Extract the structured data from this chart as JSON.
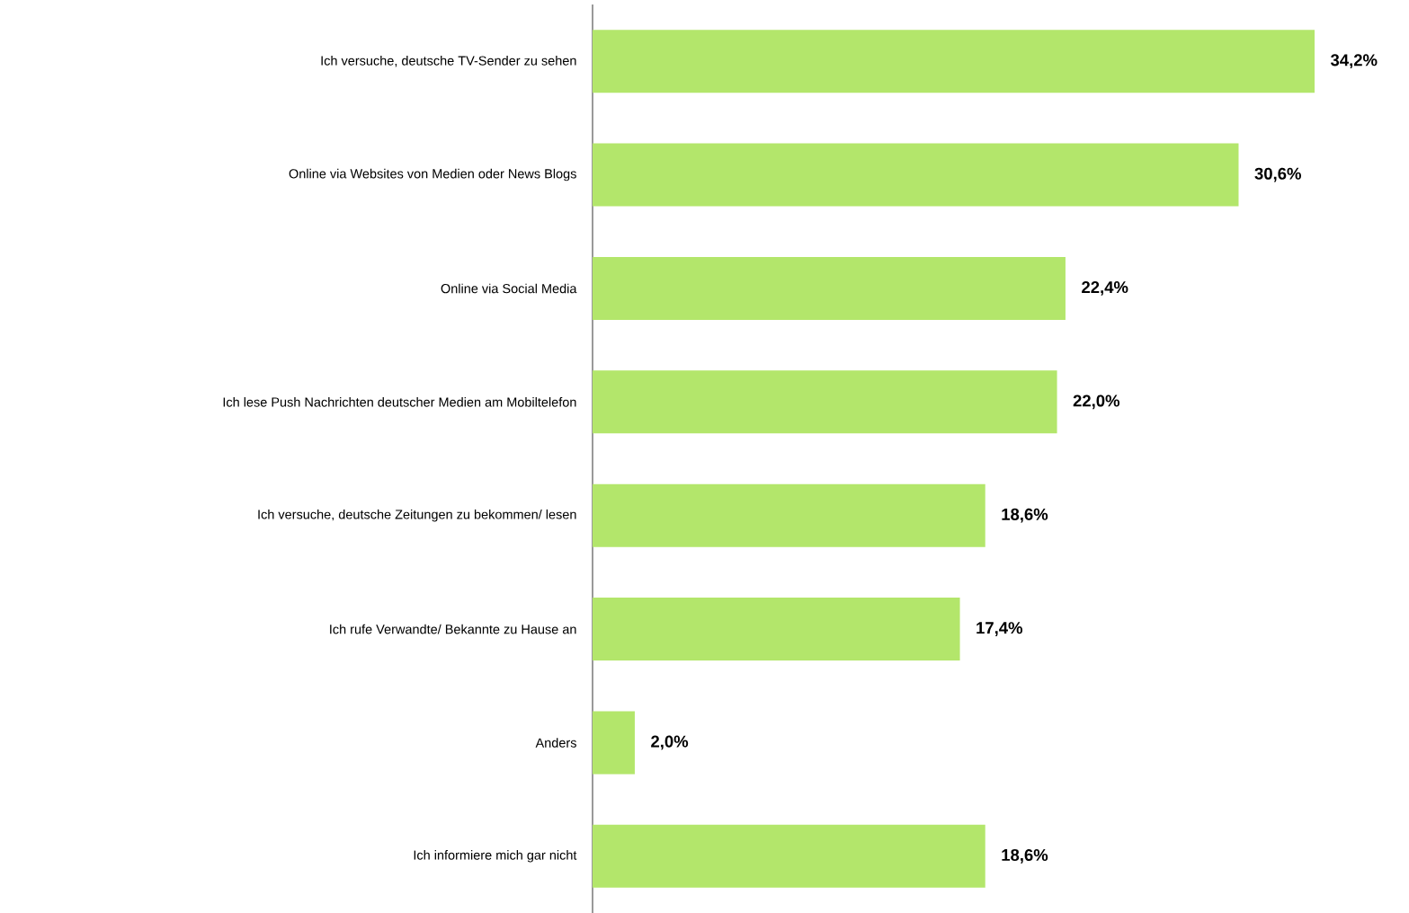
{
  "chart_data": {
    "type": "bar",
    "orientation": "horizontal",
    "categories": [
      "Ich versuche, deutsche TV-Sender zu sehen",
      "Online via Websites von Medien oder News Blogs",
      "Online via Social Media",
      "Ich lese Push Nachrichten deutscher Medien am Mobiltelefon",
      "Ich versuche, deutsche Zeitungen zu bekommen/ lesen",
      "Ich rufe Verwandte/ Bekannte zu Hause an",
      "Anders",
      "Ich informiere mich gar nicht"
    ],
    "values": [
      34.2,
      30.6,
      22.4,
      22.0,
      18.6,
      17.4,
      2.0,
      18.6
    ],
    "value_labels": [
      "34,2%",
      "30,6%",
      "22,4%",
      "22,0%",
      "18,6%",
      "17,4%",
      "2,0%",
      "18,6%"
    ],
    "color": "#b3e66b",
    "tick_labels": "y"
  }
}
